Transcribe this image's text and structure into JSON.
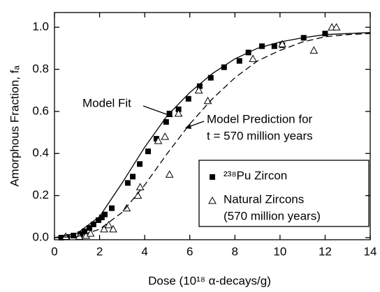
{
  "chart_data": {
    "type": "scatter",
    "xlabel": "Dose (10¹⁸ α-decays/g)",
    "ylabel": "Amorphous Fraction, fₐ",
    "xlim": [
      0,
      14
    ],
    "xticks": [
      0,
      2,
      4,
      6,
      8,
      10,
      12,
      14
    ],
    "ylim": [
      -0.01,
      1.07
    ],
    "yticks": [
      {
        "value": 0,
        "label": "0.0"
      },
      {
        "value": 0.2,
        "label": "0.2"
      },
      {
        "value": 0.4,
        "label": "0.4"
      },
      {
        "value": 0.6,
        "label": "0.6"
      },
      {
        "value": 0.8,
        "label": "0.8"
      },
      {
        "value": 1.0,
        "label": "1.0"
      }
    ],
    "series": [
      {
        "name": "²³⁸Pu Zircon",
        "marker": "square",
        "color": "#000000",
        "x": [
          0.3,
          0.56,
          0.84,
          1.15,
          1.33,
          1.55,
          1.73,
          1.95,
          2.1,
          2.23,
          2.54,
          3.25,
          3.47,
          3.78,
          4.15,
          4.52,
          4.95,
          5.1,
          5.5,
          5.94,
          6.44,
          6.93,
          7.52,
          8.2,
          8.6,
          9.2,
          9.75,
          10.1,
          11.05,
          12.0
        ],
        "values": [
          0.0,
          0.003,
          0.01,
          0.017,
          0.03,
          0.046,
          0.063,
          0.083,
          0.096,
          0.11,
          0.14,
          0.26,
          0.29,
          0.35,
          0.41,
          0.47,
          0.55,
          0.59,
          0.61,
          0.66,
          0.72,
          0.76,
          0.81,
          0.84,
          0.88,
          0.91,
          0.91,
          0.915,
          0.95,
          0.97
        ]
      },
      {
        "name": "Natural Zircons",
        "name_note": "(570 million years)",
        "marker": "triangle",
        "color": "#000000",
        "x": [
          0.5,
          1.1,
          1.4,
          1.6,
          2.2,
          2.4,
          2.6,
          3.2,
          3.7,
          3.8,
          4.6,
          4.9,
          5.1,
          5.5,
          6.4,
          6.8,
          8.8,
          10.1,
          11.5,
          12.3,
          12.5
        ],
        "values": [
          0.005,
          0.005,
          0.01,
          0.02,
          0.04,
          0.06,
          0.04,
          0.14,
          0.2,
          0.24,
          0.46,
          0.48,
          0.3,
          0.59,
          0.7,
          0.65,
          0.85,
          0.92,
          0.89,
          1.0,
          1.0
        ]
      },
      {
        "marker": "none",
        "line_style": "solid",
        "color": "#000000",
        "x": [
          0,
          1,
          2,
          3,
          4,
          5,
          6,
          7,
          8,
          9,
          10,
          11,
          12,
          13,
          14
        ],
        "values": [
          0,
          0.02,
          0.1,
          0.26,
          0.43,
          0.58,
          0.69,
          0.78,
          0.85,
          0.9,
          0.93,
          0.95,
          0.965,
          0.97,
          0.975
        ]
      },
      {
        "marker": "none",
        "line_style": "dashed",
        "color": "#000000",
        "x": [
          0,
          1,
          2,
          3,
          4,
          5,
          6,
          7,
          8,
          9,
          10,
          11,
          12,
          13,
          14
        ],
        "values": [
          0,
          0.005,
          0.04,
          0.12,
          0.25,
          0.4,
          0.54,
          0.66,
          0.76,
          0.84,
          0.89,
          0.93,
          0.955,
          0.965,
          0.97
        ]
      }
    ],
    "annotations": [
      "Model Fit",
      "Model Prediction for",
      "t = 570 million years"
    ]
  }
}
